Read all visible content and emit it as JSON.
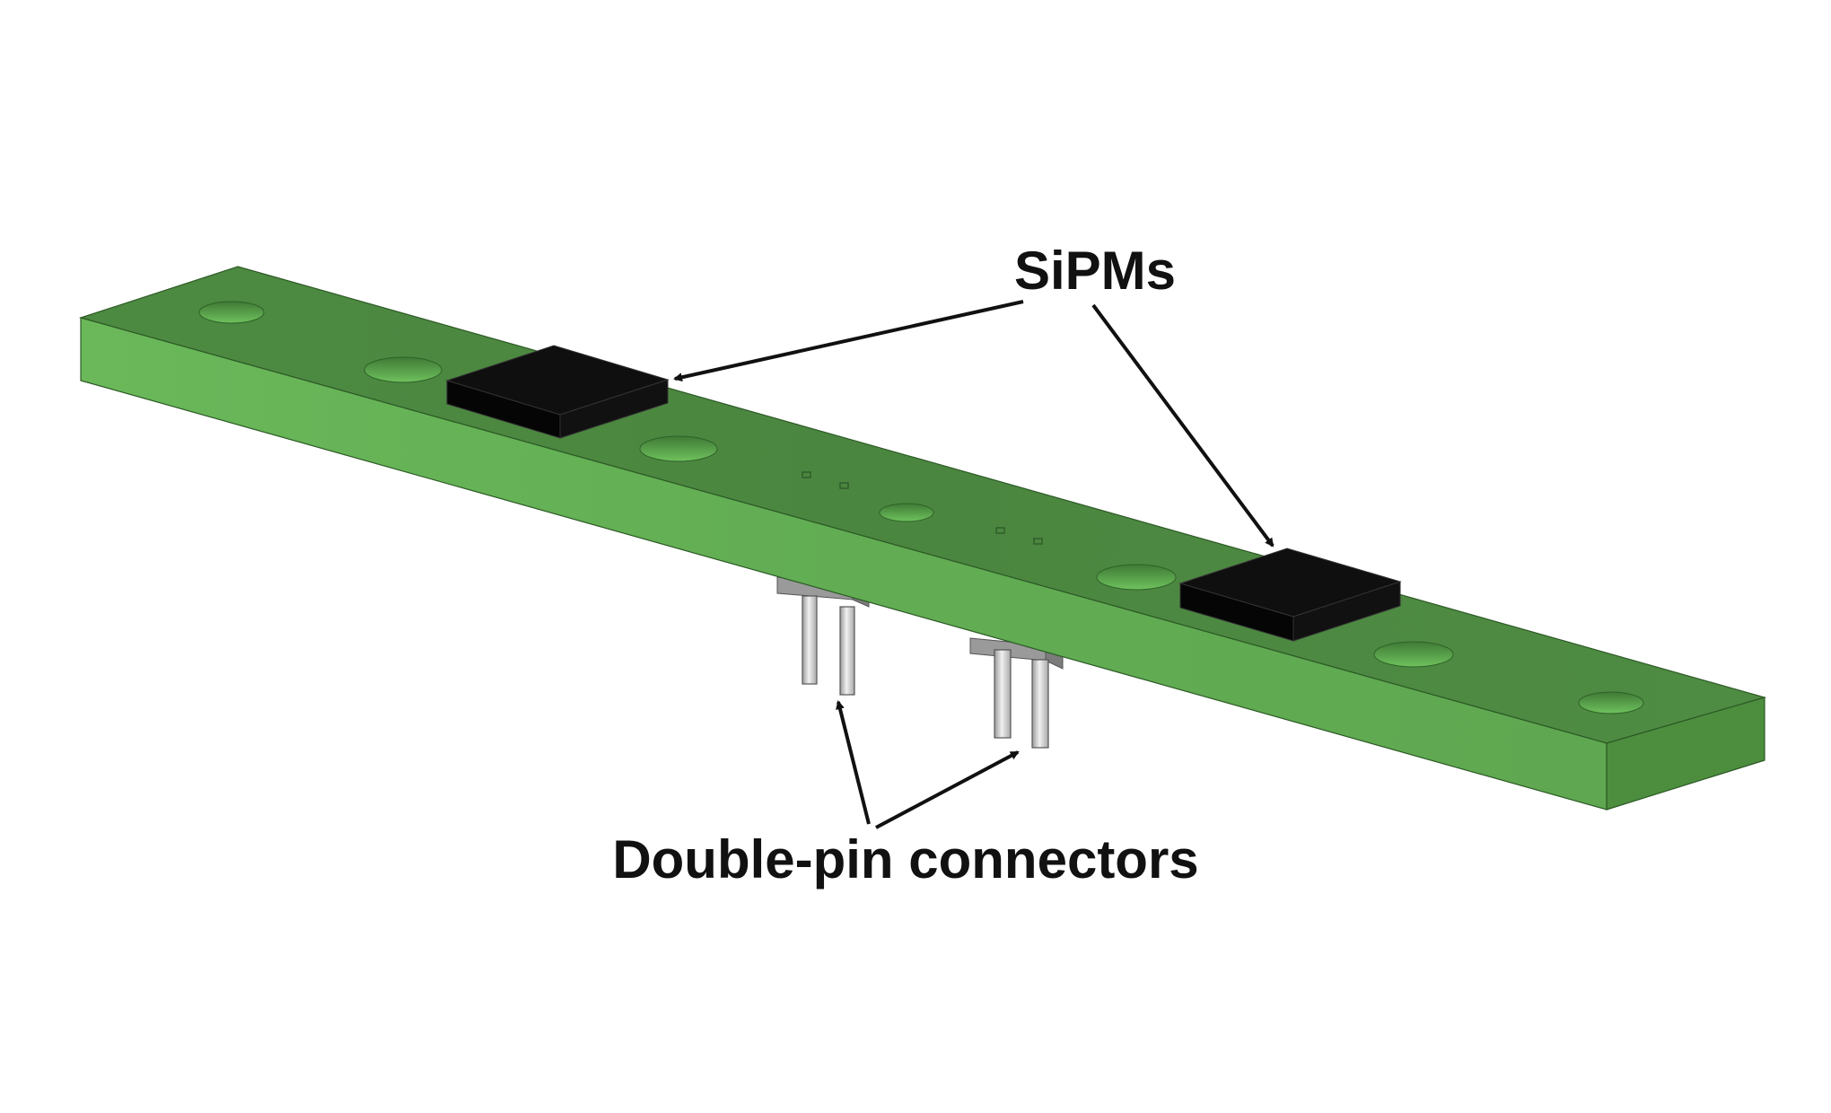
{
  "labels": {
    "sipms": "SiPMs",
    "connectors": "Double-pin connectors"
  },
  "colors": {
    "board_top": "#4f8a43",
    "board_front": "#67b257",
    "board_end": "#4a8c3c",
    "hole_fill": "#5aaa4c",
    "sipm_top": "#0e0e0e",
    "sipm_side": "#000000",
    "pin_light": "#e8e8e8",
    "pin_dark": "#8f8f8f",
    "text": "#111111"
  }
}
